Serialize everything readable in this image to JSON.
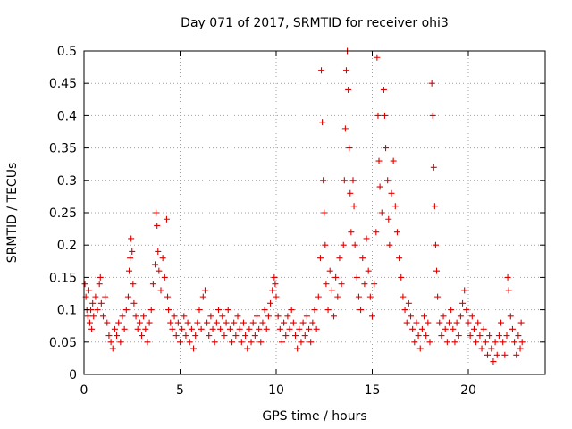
{
  "chart_data": {
    "type": "scatter",
    "title": "Day 071 of 2017, SRMTID for receiver ohi3",
    "xlabel": "GPS time / hours",
    "ylabel": "SRMTID / TECUs",
    "xlim": [
      0,
      24
    ],
    "ylim": [
      0,
      0.5
    ],
    "xticks": [
      0,
      5,
      10,
      15,
      20
    ],
    "xtick_labels": [
      "0",
      "5",
      "10",
      "15",
      "20"
    ],
    "yticks": [
      0,
      0.05,
      0.1,
      0.15,
      0.2,
      0.25,
      0.3,
      0.35,
      0.4,
      0.45,
      0.5
    ],
    "ytick_labels": [
      "0",
      "0.05",
      "0.1",
      "0.15",
      "0.2",
      "0.25",
      "0.3",
      "0.35",
      "0.4",
      "0.45",
      "0.5"
    ],
    "grid": true,
    "marker": "+",
    "color": "#e00000",
    "series": [
      {
        "name": "SRMTID",
        "points": [
          [
            0.05,
            0.14
          ],
          [
            0.1,
            0.12
          ],
          [
            0.15,
            0.1
          ],
          [
            0.2,
            0.09
          ],
          [
            0.25,
            0.13
          ],
          [
            0.3,
            0.08
          ],
          [
            0.35,
            0.1
          ],
          [
            0.4,
            0.07
          ],
          [
            0.45,
            0.11
          ],
          [
            0.5,
            0.09
          ],
          [
            0.6,
            0.12
          ],
          [
            0.7,
            0.1
          ],
          [
            0.8,
            0.14
          ],
          [
            0.85,
            0.15
          ],
          [
            0.9,
            0.11
          ],
          [
            1.0,
            0.09
          ],
          [
            1.1,
            0.12
          ],
          [
            1.2,
            0.08
          ],
          [
            1.3,
            0.06
          ],
          [
            1.4,
            0.05
          ],
          [
            1.5,
            0.04
          ],
          [
            1.6,
            0.07
          ],
          [
            1.7,
            0.06
          ],
          [
            1.8,
            0.08
          ],
          [
            1.9,
            0.05
          ],
          [
            2.0,
            0.09
          ],
          [
            2.1,
            0.07
          ],
          [
            2.2,
            0.1
          ],
          [
            2.3,
            0.12
          ],
          [
            2.35,
            0.16
          ],
          [
            2.4,
            0.18
          ],
          [
            2.45,
            0.21
          ],
          [
            2.5,
            0.19
          ],
          [
            2.55,
            0.14
          ],
          [
            2.6,
            0.11
          ],
          [
            2.7,
            0.09
          ],
          [
            2.8,
            0.07
          ],
          [
            2.9,
            0.08
          ],
          [
            3.0,
            0.06
          ],
          [
            3.1,
            0.09
          ],
          [
            3.2,
            0.07
          ],
          [
            3.3,
            0.05
          ],
          [
            3.4,
            0.08
          ],
          [
            3.5,
            0.1
          ],
          [
            3.6,
            0.14
          ],
          [
            3.7,
            0.17
          ],
          [
            3.75,
            0.25
          ],
          [
            3.8,
            0.23
          ],
          [
            3.85,
            0.19
          ],
          [
            3.9,
            0.16
          ],
          [
            4.0,
            0.13
          ],
          [
            4.1,
            0.18
          ],
          [
            4.2,
            0.15
          ],
          [
            4.3,
            0.24
          ],
          [
            4.35,
            0.12
          ],
          [
            4.4,
            0.1
          ],
          [
            4.5,
            0.08
          ],
          [
            4.6,
            0.07
          ],
          [
            4.7,
            0.09
          ],
          [
            4.8,
            0.06
          ],
          [
            4.9,
            0.08
          ],
          [
            5.0,
            0.05
          ],
          [
            5.1,
            0.07
          ],
          [
            5.2,
            0.09
          ],
          [
            5.3,
            0.06
          ],
          [
            5.4,
            0.08
          ],
          [
            5.5,
            0.05
          ],
          [
            5.6,
            0.07
          ],
          [
            5.7,
            0.04
          ],
          [
            5.8,
            0.06
          ],
          [
            5.9,
            0.08
          ],
          [
            6.0,
            0.1
          ],
          [
            6.1,
            0.07
          ],
          [
            6.2,
            0.12
          ],
          [
            6.3,
            0.13
          ],
          [
            6.4,
            0.08
          ],
          [
            6.5,
            0.06
          ],
          [
            6.6,
            0.09
          ],
          [
            6.7,
            0.07
          ],
          [
            6.8,
            0.05
          ],
          [
            6.9,
            0.08
          ],
          [
            7.0,
            0.1
          ],
          [
            7.1,
            0.07
          ],
          [
            7.2,
            0.09
          ],
          [
            7.3,
            0.06
          ],
          [
            7.4,
            0.08
          ],
          [
            7.5,
            0.1
          ],
          [
            7.6,
            0.07
          ],
          [
            7.7,
            0.05
          ],
          [
            7.8,
            0.08
          ],
          [
            7.9,
            0.06
          ],
          [
            8.0,
            0.09
          ],
          [
            8.1,
            0.07
          ],
          [
            8.2,
            0.05
          ],
          [
            8.3,
            0.08
          ],
          [
            8.4,
            0.06
          ],
          [
            8.5,
            0.04
          ],
          [
            8.6,
            0.07
          ],
          [
            8.7,
            0.05
          ],
          [
            8.8,
            0.08
          ],
          [
            8.9,
            0.06
          ],
          [
            9.0,
            0.09
          ],
          [
            9.1,
            0.07
          ],
          [
            9.2,
            0.05
          ],
          [
            9.3,
            0.08
          ],
          [
            9.4,
            0.1
          ],
          [
            9.5,
            0.07
          ],
          [
            9.6,
            0.09
          ],
          [
            9.7,
            0.11
          ],
          [
            9.8,
            0.13
          ],
          [
            9.9,
            0.15
          ],
          [
            9.95,
            0.14
          ],
          [
            10.0,
            0.12
          ],
          [
            10.1,
            0.09
          ],
          [
            10.2,
            0.07
          ],
          [
            10.3,
            0.05
          ],
          [
            10.4,
            0.08
          ],
          [
            10.5,
            0.06
          ],
          [
            10.6,
            0.09
          ],
          [
            10.7,
            0.07
          ],
          [
            10.8,
            0.1
          ],
          [
            10.9,
            0.08
          ],
          [
            11.0,
            0.06
          ],
          [
            11.1,
            0.04
          ],
          [
            11.2,
            0.07
          ],
          [
            11.3,
            0.05
          ],
          [
            11.4,
            0.08
          ],
          [
            11.5,
            0.06
          ],
          [
            11.6,
            0.09
          ],
          [
            11.7,
            0.07
          ],
          [
            11.8,
            0.05
          ],
          [
            11.9,
            0.08
          ],
          [
            12.0,
            0.1
          ],
          [
            12.1,
            0.07
          ],
          [
            12.2,
            0.12
          ],
          [
            12.3,
            0.18
          ],
          [
            12.35,
            0.47
          ],
          [
            12.4,
            0.39
          ],
          [
            12.45,
            0.3
          ],
          [
            12.5,
            0.25
          ],
          [
            12.55,
            0.2
          ],
          [
            12.6,
            0.14
          ],
          [
            12.7,
            0.1
          ],
          [
            12.8,
            0.16
          ],
          [
            12.9,
            0.13
          ],
          [
            13.0,
            0.09
          ],
          [
            13.1,
            0.15
          ],
          [
            13.2,
            0.12
          ],
          [
            13.3,
            0.18
          ],
          [
            13.4,
            0.14
          ],
          [
            13.5,
            0.2
          ],
          [
            13.55,
            0.3
          ],
          [
            13.6,
            0.38
          ],
          [
            13.65,
            0.47
          ],
          [
            13.7,
            0.5
          ],
          [
            13.75,
            0.44
          ],
          [
            13.8,
            0.35
          ],
          [
            13.85,
            0.28
          ],
          [
            13.9,
            0.22
          ],
          [
            14.0,
            0.3
          ],
          [
            14.05,
            0.26
          ],
          [
            14.1,
            0.2
          ],
          [
            14.2,
            0.15
          ],
          [
            14.3,
            0.12
          ],
          [
            14.4,
            0.1
          ],
          [
            14.5,
            0.18
          ],
          [
            14.6,
            0.14
          ],
          [
            14.7,
            0.21
          ],
          [
            14.8,
            0.16
          ],
          [
            14.9,
            0.12
          ],
          [
            15.0,
            0.09
          ],
          [
            15.1,
            0.14
          ],
          [
            15.2,
            0.22
          ],
          [
            15.25,
            0.49
          ],
          [
            15.3,
            0.4
          ],
          [
            15.35,
            0.33
          ],
          [
            15.4,
            0.29
          ],
          [
            15.5,
            0.25
          ],
          [
            15.6,
            0.44
          ],
          [
            15.65,
            0.4
          ],
          [
            15.7,
            0.35
          ],
          [
            15.8,
            0.3
          ],
          [
            15.85,
            0.24
          ],
          [
            15.9,
            0.2
          ],
          [
            16.0,
            0.28
          ],
          [
            16.1,
            0.33
          ],
          [
            16.2,
            0.26
          ],
          [
            16.3,
            0.22
          ],
          [
            16.4,
            0.18
          ],
          [
            16.5,
            0.15
          ],
          [
            16.6,
            0.12
          ],
          [
            16.7,
            0.1
          ],
          [
            16.8,
            0.08
          ],
          [
            16.9,
            0.11
          ],
          [
            17.0,
            0.09
          ],
          [
            17.1,
            0.07
          ],
          [
            17.2,
            0.05
          ],
          [
            17.3,
            0.08
          ],
          [
            17.4,
            0.06
          ],
          [
            17.5,
            0.04
          ],
          [
            17.6,
            0.07
          ],
          [
            17.7,
            0.09
          ],
          [
            17.8,
            0.06
          ],
          [
            17.9,
            0.08
          ],
          [
            18.0,
            0.05
          ],
          [
            18.1,
            0.45
          ],
          [
            18.15,
            0.4
          ],
          [
            18.2,
            0.32
          ],
          [
            18.25,
            0.26
          ],
          [
            18.3,
            0.2
          ],
          [
            18.35,
            0.16
          ],
          [
            18.4,
            0.12
          ],
          [
            18.5,
            0.08
          ],
          [
            18.6,
            0.06
          ],
          [
            18.7,
            0.09
          ],
          [
            18.8,
            0.07
          ],
          [
            18.9,
            0.05
          ],
          [
            19.0,
            0.08
          ],
          [
            19.1,
            0.1
          ],
          [
            19.2,
            0.07
          ],
          [
            19.3,
            0.05
          ],
          [
            19.4,
            0.08
          ],
          [
            19.5,
            0.06
          ],
          [
            19.6,
            0.09
          ],
          [
            19.7,
            0.11
          ],
          [
            19.8,
            0.13
          ],
          [
            19.9,
            0.1
          ],
          [
            20.0,
            0.08
          ],
          [
            20.1,
            0.06
          ],
          [
            20.2,
            0.09
          ],
          [
            20.3,
            0.07
          ],
          [
            20.4,
            0.05
          ],
          [
            20.5,
            0.08
          ],
          [
            20.6,
            0.06
          ],
          [
            20.7,
            0.04
          ],
          [
            20.8,
            0.07
          ],
          [
            20.9,
            0.05
          ],
          [
            21.0,
            0.03
          ],
          [
            21.1,
            0.06
          ],
          [
            21.2,
            0.04
          ],
          [
            21.3,
            0.02
          ],
          [
            21.4,
            0.05
          ],
          [
            21.5,
            0.03
          ],
          [
            21.6,
            0.06
          ],
          [
            21.7,
            0.08
          ],
          [
            21.8,
            0.05
          ],
          [
            21.9,
            0.03
          ],
          [
            22.0,
            0.06
          ],
          [
            22.05,
            0.15
          ],
          [
            22.1,
            0.13
          ],
          [
            22.2,
            0.09
          ],
          [
            22.3,
            0.07
          ],
          [
            22.4,
            0.05
          ],
          [
            22.5,
            0.03
          ],
          [
            22.6,
            0.06
          ],
          [
            22.7,
            0.04
          ],
          [
            22.75,
            0.08
          ],
          [
            22.8,
            0.05
          ]
        ]
      }
    ]
  }
}
